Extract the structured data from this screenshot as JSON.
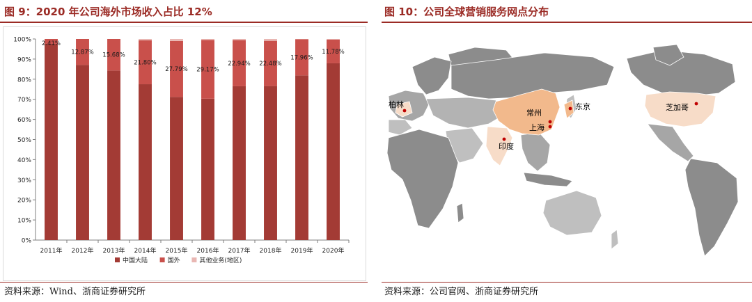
{
  "left": {
    "title": "图 9：2020 年公司海外市场收入占比 12%",
    "source": "资料来源：Wind、浙商证券研究所"
  },
  "right": {
    "title": "图 10：公司全球营销服务网点分布",
    "source": "资料来源：公司官网、浙商证券研究所"
  },
  "chart_data": {
    "type": "bar",
    "stacked": true,
    "categories": [
      "2011年",
      "2012年",
      "2013年",
      "2014年",
      "2015年",
      "2016年",
      "2017年",
      "2018年",
      "2019年",
      "2020年"
    ],
    "series": [
      {
        "name": "中国大陆",
        "values": [
          97.59,
          87.13,
          84.32,
          77.5,
          71.2,
          70.3,
          76.5,
          76.6,
          81.9,
          87.9
        ]
      },
      {
        "name": "国外",
        "values": [
          2.41,
          12.87,
          15.68,
          21.8,
          27.79,
          29.17,
          22.94,
          22.48,
          17.96,
          11.78
        ]
      },
      {
        "name": "其他业务(地区)",
        "values": [
          0.0,
          0.0,
          0.0,
          0.7,
          1.01,
          0.53,
          0.56,
          0.92,
          0.14,
          0.32
        ]
      }
    ],
    "data_labels": [
      "2.41%",
      "12.87%",
      "15.68%",
      "21.80%",
      "27.79%",
      "29.17%",
      "22.94%",
      "22.48%",
      "17.96%",
      "11.78%"
    ],
    "yticks": [
      "0%",
      "10%",
      "20%",
      "30%",
      "40%",
      "50%",
      "60%",
      "70%",
      "80%",
      "90%",
      "100%"
    ],
    "ylim": [
      0,
      100
    ],
    "colors": [
      "#a33b35",
      "#c9504b",
      "#e9b7b3"
    ],
    "grid": false,
    "legend_position": "bottom"
  },
  "map": {
    "labels": {
      "berlin": "柏林",
      "tokyo": "东京",
      "changzhou": "常州",
      "shanghai": "上海",
      "india": "印度",
      "chicago": "芝加哥"
    },
    "colors": {
      "land": "#8c8c8c",
      "land_light": "#bfbfbf",
      "highlight": "#f2b98c",
      "highlight_light": "#f7dcc8",
      "marker": "#c00000"
    }
  }
}
